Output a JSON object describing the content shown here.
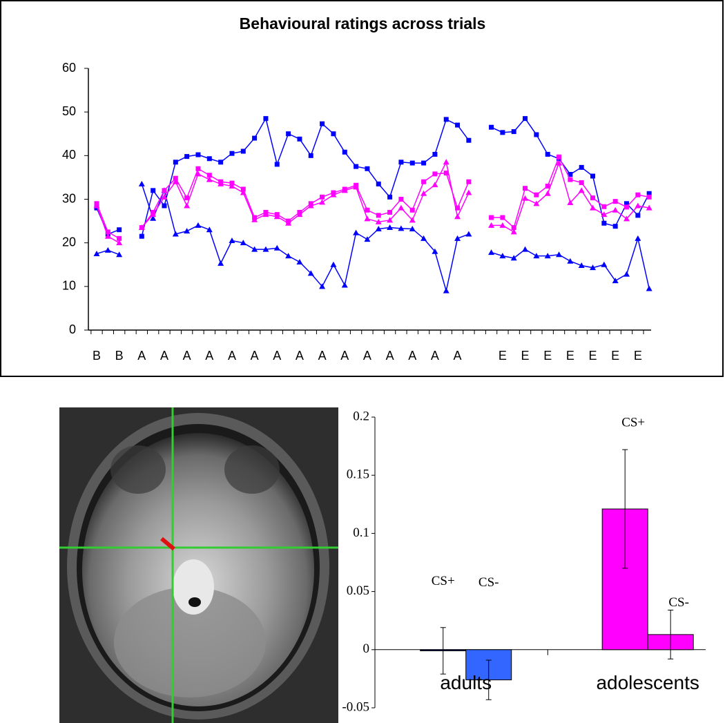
{
  "chart_data": [
    {
      "type": "line",
      "title": "Behavioural ratings across trials",
      "categories": [
        "B",
        null,
        "B",
        null,
        "A",
        null,
        "A",
        null,
        "A",
        null,
        "A",
        null,
        "A",
        null,
        "A",
        null,
        "A",
        null,
        "A",
        null,
        "A",
        null,
        "A",
        null,
        "A",
        null,
        "A",
        null,
        "A",
        null,
        "A",
        null,
        "A",
        null,
        null,
        null,
        "E",
        null,
        "E",
        null,
        "E",
        null,
        "E",
        null,
        "E",
        null,
        "E",
        null,
        "E",
        null
      ],
      "series": [
        {
          "color": "#0000ff",
          "marker": "square",
          "values": [
            28,
            22,
            23,
            null,
            21.5,
            32,
            28.5,
            38.5,
            39.8,
            40.2,
            39.3,
            38.5,
            40.5,
            41,
            44,
            48.5,
            38,
            45,
            43.8,
            40,
            47.3,
            45,
            40.8,
            37.5,
            37,
            33.5,
            30.5,
            38.5,
            38.3,
            38.3,
            40.3,
            48.3,
            47,
            43.5,
            null,
            46.5,
            45.3,
            45.5,
            48.5,
            44.8,
            40.3,
            39.3,
            35.7,
            37.3,
            35.3,
            24.5,
            23.8,
            29,
            26.3,
            31.3
          ]
        },
        {
          "color": "#0000ff",
          "marker": "triangle",
          "values": [
            17.5,
            18.3,
            17.3,
            null,
            33.5,
            25.6,
            32,
            22,
            22.7,
            24,
            23,
            15.3,
            20.5,
            20,
            18.5,
            18.5,
            18.8,
            17,
            15.6,
            13,
            10,
            15,
            10.3,
            22.3,
            20.8,
            23.2,
            23.5,
            23.3,
            23.2,
            21,
            18,
            9,
            21,
            22,
            null,
            17.8,
            17,
            16.5,
            18.5,
            17,
            17,
            17.3,
            15.8,
            14.8,
            14.3,
            15,
            11.3,
            12.8,
            21,
            9.5
          ]
        },
        {
          "color": "#ff00ff",
          "marker": "square",
          "values": [
            29,
            22.5,
            21,
            null,
            23.5,
            27,
            32,
            34.8,
            30.3,
            37,
            35.5,
            34,
            33.7,
            32.3,
            25.8,
            27,
            26.5,
            25,
            27,
            29,
            30.5,
            31.5,
            32.3,
            33.2,
            27.5,
            26.3,
            27,
            30,
            27.5,
            34,
            35.8,
            36,
            28,
            34,
            null,
            25.8,
            25.8,
            23.5,
            32.5,
            31,
            33,
            39.7,
            34.5,
            33.8,
            30.3,
            28.3,
            29.5,
            28.2,
            31,
            30.5
          ]
        },
        {
          "color": "#ff00ff",
          "marker": "triangle",
          "values": [
            28.5,
            21.5,
            20,
            null,
            23.5,
            26.5,
            30.5,
            34,
            28.5,
            35.8,
            34.5,
            33.5,
            33,
            31.5,
            25.3,
            26.5,
            26,
            24.5,
            26.5,
            28.5,
            29.3,
            31,
            32,
            32.8,
            25.5,
            24.8,
            25.2,
            28,
            25.2,
            31.3,
            33.3,
            38.5,
            26,
            31.5,
            null,
            24,
            24,
            22.5,
            30.2,
            29,
            31.3,
            38.3,
            29.2,
            32,
            28,
            26.5,
            27.5,
            25.5,
            28.5,
            28
          ]
        }
      ],
      "ylim": [
        0,
        60
      ],
      "yticks": [
        0,
        10,
        20,
        30,
        40,
        50,
        60
      ],
      "grid": false
    },
    {
      "type": "bar",
      "categories": [
        "adults",
        "adolescents"
      ],
      "series": [
        {
          "name": "CS+",
          "values": [
            -0.001,
            0.121
          ],
          "errors": [
            0.02,
            0.051
          ],
          "colors": [
            "#000066",
            "#ff00ff"
          ]
        },
        {
          "name": "CS-",
          "values": [
            -0.026,
            0.013
          ],
          "errors": [
            0.017,
            0.021
          ],
          "colors": [
            "#3366ff",
            "#ff00ff"
          ]
        }
      ],
      "ylim": [
        -0.05,
        0.2
      ],
      "yticks": [
        -0.05,
        0,
        0.05,
        0.1,
        0.15,
        0.2
      ]
    }
  ]
}
